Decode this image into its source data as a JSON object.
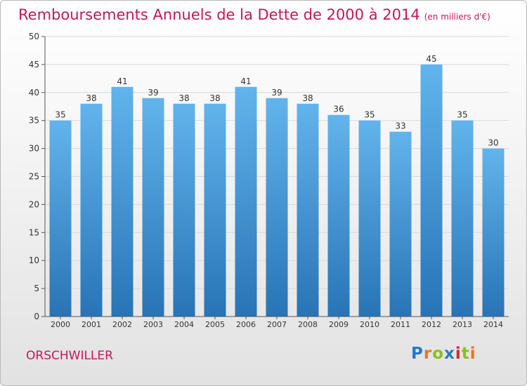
{
  "title": {
    "main": "Remboursements Annuels de la Dette de 2000 à 2014",
    "unit": "(en milliers d'€)"
  },
  "footer": {
    "commune": "ORSCHWILLER",
    "logo": "Proxiti"
  },
  "colors": {
    "title": "#c2185b",
    "bar_top": "#62b4ec",
    "bar_bottom": "#2874b6",
    "axis": "#555555",
    "grid": "#d8d8d8"
  },
  "chart_data": {
    "type": "bar",
    "title": "Remboursements Annuels de la Dette de 2000 à 2014",
    "ylabel": "",
    "xlabel": "",
    "categories": [
      "2000",
      "2001",
      "2002",
      "2003",
      "2004",
      "2005",
      "2006",
      "2007",
      "2008",
      "2009",
      "2010",
      "2011",
      "2012",
      "2013",
      "2014"
    ],
    "values": [
      35,
      38,
      41,
      39,
      38,
      38,
      41,
      39,
      38,
      36,
      35,
      33,
      45,
      35,
      30
    ],
    "ylim": [
      0,
      50
    ],
    "yticks": [
      0,
      5,
      10,
      15,
      20,
      25,
      30,
      35,
      40,
      45,
      50
    ],
    "grid": true,
    "data_labels": true
  }
}
